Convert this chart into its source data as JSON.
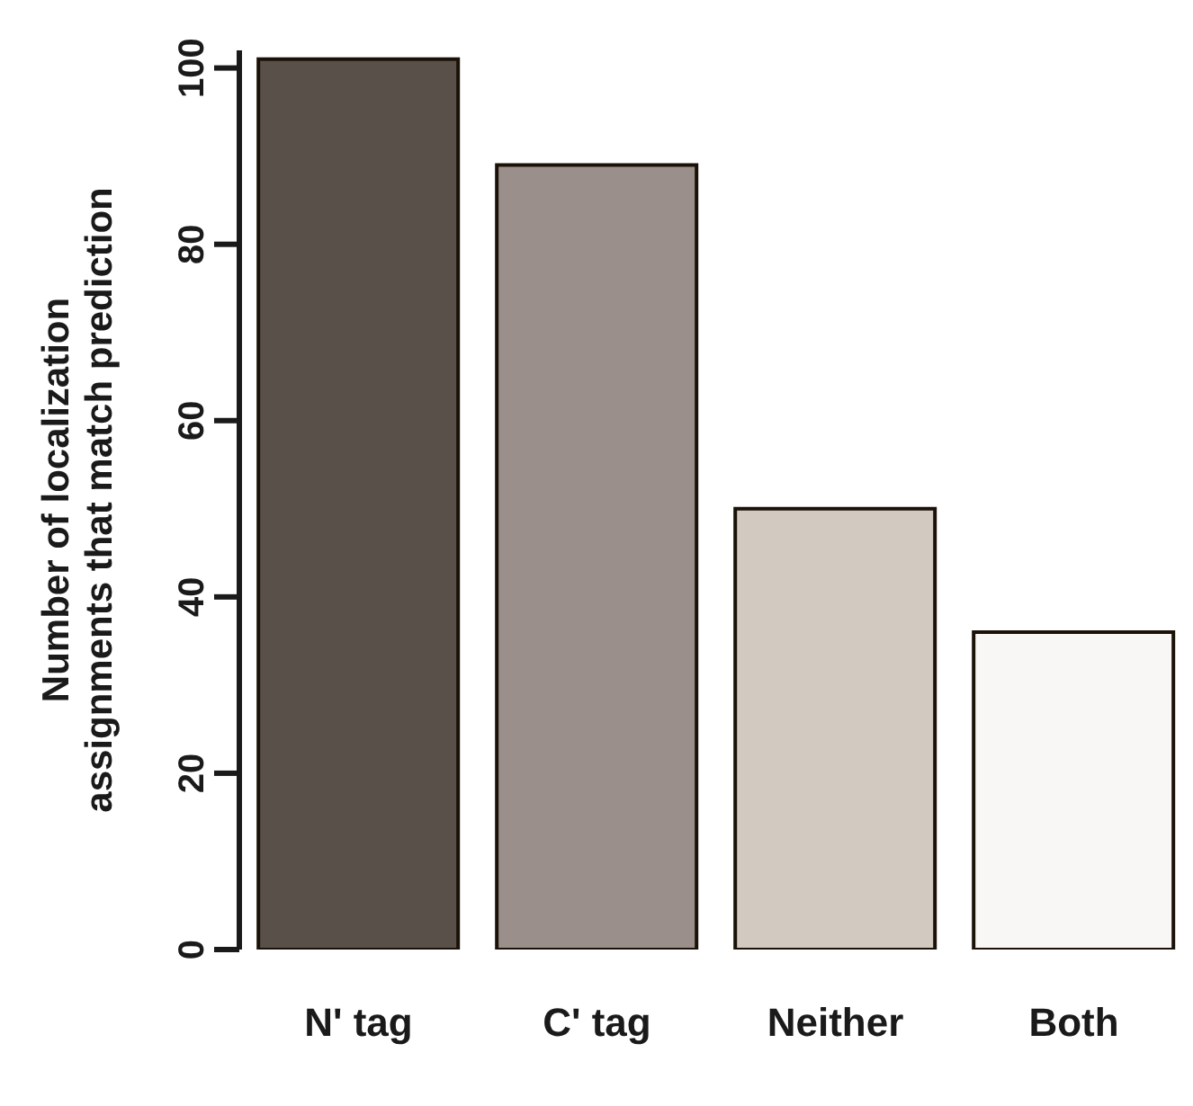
{
  "chart_data": {
    "type": "bar",
    "ylabel": "Number of localization\nassignments that match prediction",
    "categories": [
      "N' tag",
      "C' tag",
      "Neither",
      "Both"
    ],
    "values": [
      101,
      89,
      50,
      36
    ],
    "colors": [
      "#595049",
      "#9a8f8a",
      "#d2c9c1",
      "#f8f7f6"
    ],
    "ylim": [
      0,
      102
    ],
    "yticks": [
      0,
      20,
      40,
      60,
      80,
      100
    ],
    "grid": false,
    "legend": false
  }
}
